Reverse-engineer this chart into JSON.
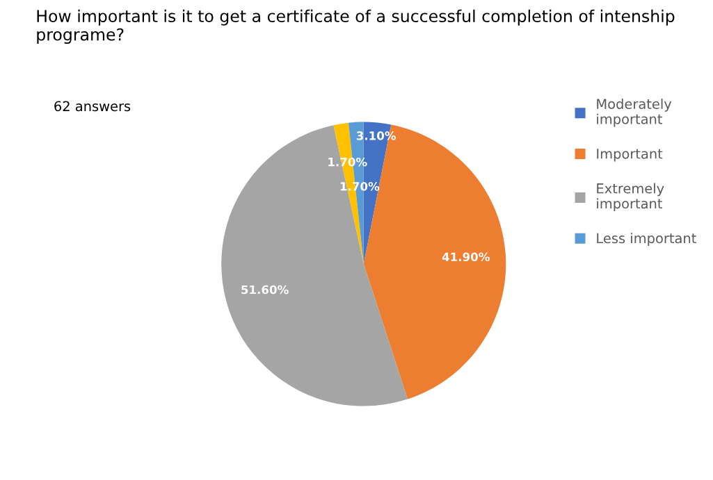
{
  "chart_data": {
    "type": "pie",
    "title": "How important is it to get a certificate of a successful completion of intenship programe?",
    "annotations": [
      "62 answers"
    ],
    "categories": [
      "Moderately important",
      "Important",
      "Extremely important",
      null,
      "Less important"
    ],
    "values": [
      3.1,
      41.9,
      51.6,
      1.7,
      1.7
    ],
    "colors": [
      "#4472c4",
      "#ed7d31",
      "#a5a5a5",
      "#ffc000",
      "#5b9bd5"
    ],
    "value_labels": [
      "3.10%",
      "41.90%",
      "51.60%",
      "1.70%",
      "1.70%"
    ],
    "legend": "right"
  }
}
